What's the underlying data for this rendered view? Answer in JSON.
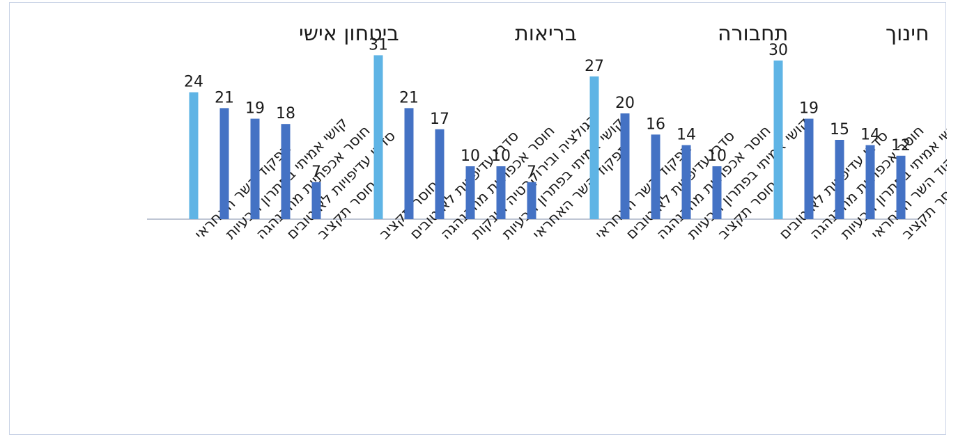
{
  "chart_data": {
    "type": "bar",
    "title": "",
    "xlabel": "",
    "ylabel": "",
    "ylim": [
      0,
      35
    ],
    "colors": {
      "highlight": "#5fb4e5",
      "bar": "#4472c4",
      "axis": "#bfc6d4",
      "frame": "#c9d3e6"
    },
    "groups": [
      {
        "name": "ביטחון אישי",
        "categories": [
          "תפקוד השר האחראי",
          "קושי אמיתי בפתרון הבעיות",
          "חוסר אכפתיות מההנהגה",
          "סדרי עדיפויות לא טובים",
          "חוסר תקציב"
        ],
        "values": [
          24,
          21,
          19,
          18,
          7
        ]
      },
      {
        "name": "בריאות",
        "categories": [
          "חוסר תקציב",
          "סדרי עדיפויות לא טובים",
          "חוסר אכפתיות מההנהגה",
          "רגולציה ובירוקרטיה חונקות",
          "קושי אמיתי בפתרון הבעיות",
          "תפקוד השר האחראי"
        ],
        "values": [
          31,
          21,
          17,
          10,
          10,
          7
        ]
      },
      {
        "name": "תחבורה",
        "categories": [
          "תפקוד השר האחראי",
          "סדרי עדיפויות לא טובים",
          "חוסר אכפתיות מההנהגה",
          "קושי אמיתי בפתרון הבעיות",
          "חוסר תקציב"
        ],
        "values": [
          27,
          20,
          16,
          14,
          10
        ]
      },
      {
        "name": "חינוך",
        "categories": [
          "סדרי עדיפויות לא טובים",
          "חוסר אכפתיות מההנהגה",
          "קושי אמיתי בפתרון הבעיות",
          "תפקוד השר האחראי",
          "חוסר תקציב"
        ],
        "values": [
          30,
          19,
          15,
          14,
          12
        ]
      }
    ]
  }
}
